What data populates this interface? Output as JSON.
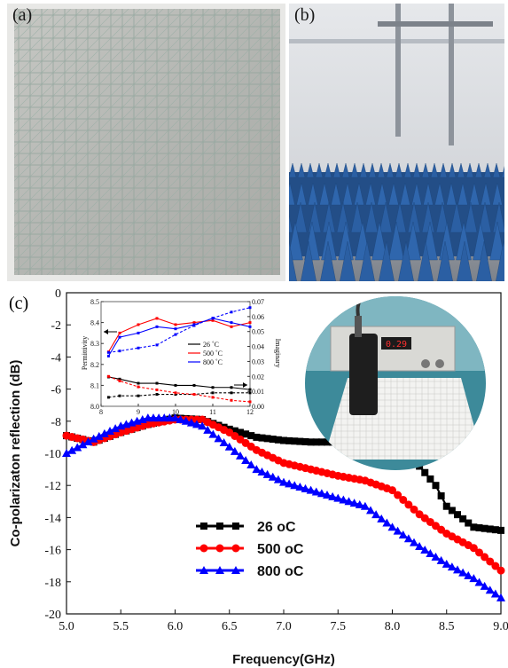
{
  "panels": {
    "a": {
      "label": "(a)"
    },
    "b": {
      "label": "(b)"
    },
    "c": {
      "label": "(c)"
    }
  },
  "meter": {
    "display": "0.29"
  },
  "colors": {
    "s26": "#000000",
    "s500": "#ff0000",
    "s800": "#0000ff",
    "absorber": "#2b5fa3"
  },
  "chart_data": [
    {
      "type": "line",
      "xlabel": "Frequency(GHz)",
      "ylabel": "Co-polarizaton reflection (dB)",
      "xlim": [
        5.0,
        9.0
      ],
      "ylim": [
        -20,
        0
      ],
      "xticks": [
        "5.0",
        "5.5",
        "6.0",
        "6.5",
        "7.0",
        "7.5",
        "8.0",
        "8.5",
        "9.0"
      ],
      "yticks": [
        "0",
        "-2",
        "-4",
        "-6",
        "-8",
        "-10",
        "-12",
        "-14",
        "-16",
        "-18",
        "-20"
      ],
      "legend_position": "lower-center",
      "series": [
        {
          "name": "26 oC",
          "marker": "square",
          "color": "#000000",
          "x": [
            5.0,
            5.25,
            5.5,
            5.75,
            6.0,
            6.25,
            6.5,
            6.75,
            7.0,
            7.25,
            7.5,
            7.75,
            7.9,
            8.0,
            8.25,
            8.4,
            8.5,
            8.75,
            9.0
          ],
          "y": [
            -8.9,
            -9.3,
            -8.7,
            -8.2,
            -7.8,
            -7.9,
            -8.5,
            -9.0,
            -9.2,
            -9.3,
            -9.3,
            -9.4,
            -9.6,
            -10.0,
            -10.8,
            -12.0,
            -13.3,
            -14.6,
            -14.8
          ]
        },
        {
          "name": "500 oC",
          "marker": "circle",
          "color": "#ff0000",
          "x": [
            5.0,
            5.25,
            5.5,
            5.75,
            6.0,
            6.25,
            6.5,
            6.75,
            7.0,
            7.25,
            7.5,
            7.75,
            8.0,
            8.25,
            8.5,
            8.75,
            9.0
          ],
          "y": [
            -8.9,
            -9.3,
            -8.7,
            -8.2,
            -7.9,
            -7.9,
            -8.7,
            -9.8,
            -10.6,
            -11.0,
            -11.4,
            -11.7,
            -12.3,
            -13.8,
            -15.0,
            -15.9,
            -17.3
          ]
        },
        {
          "name": "800 oC",
          "marker": "triangle",
          "color": "#0000ff",
          "x": [
            5.0,
            5.25,
            5.5,
            5.75,
            6.0,
            6.25,
            6.5,
            6.75,
            7.0,
            7.25,
            7.5,
            7.75,
            8.0,
            8.25,
            8.5,
            8.75,
            9.0
          ],
          "y": [
            -10.0,
            -9.1,
            -8.3,
            -7.8,
            -7.8,
            -8.3,
            -9.6,
            -11.0,
            -11.8,
            -12.3,
            -12.8,
            -13.3,
            -14.6,
            -15.8,
            -16.9,
            -17.8,
            -19.0
          ]
        }
      ]
    },
    {
      "type": "line",
      "xlabel": "",
      "ylabel": "Permittivity",
      "y2label": "Imaginary",
      "xlim": [
        8,
        12
      ],
      "ylim": [
        8.0,
        8.5
      ],
      "y2lim": [
        0.0,
        0.07
      ],
      "xticks": [
        "8",
        "9",
        "10",
        "11",
        "12"
      ],
      "yticks": [
        "8.0",
        "8.1",
        "8.2",
        "8.3",
        "8.4",
        "8.5"
      ],
      "y2ticks": [
        "0.00",
        "0.01",
        "0.02",
        "0.03",
        "0.04",
        "0.05",
        "0.06",
        "0.07"
      ],
      "legend_position": "right",
      "legend": [
        "26 ˚C",
        "500 ˚C",
        "800 ˚C"
      ],
      "series": [
        {
          "name": "26 ˚C",
          "axis": "left",
          "color": "#000000",
          "x": [
            8.2,
            8.5,
            9,
            9.5,
            10,
            10.5,
            11,
            11.5,
            12
          ],
          "y": [
            8.14,
            8.13,
            8.11,
            8.11,
            8.1,
            8.1,
            8.09,
            8.09,
            8.08
          ]
        },
        {
          "name": "500 ˚C",
          "axis": "left",
          "color": "#ff0000",
          "x": [
            8.2,
            8.5,
            9,
            9.5,
            10,
            10.5,
            11,
            11.5,
            12
          ],
          "y": [
            8.26,
            8.35,
            8.39,
            8.42,
            8.39,
            8.4,
            8.41,
            8.38,
            8.4
          ]
        },
        {
          "name": "800 ˚C",
          "axis": "left",
          "color": "#0000ff",
          "x": [
            8.2,
            8.5,
            9,
            9.5,
            10,
            10.5,
            11,
            11.5,
            12
          ],
          "y": [
            8.24,
            8.33,
            8.35,
            8.38,
            8.37,
            8.39,
            8.42,
            8.4,
            8.38
          ]
        },
        {
          "name": "26 ˚C imag",
          "axis": "right",
          "style": "dashed",
          "color": "#000000",
          "x": [
            8.2,
            8.5,
            9,
            9.5,
            10,
            10.5,
            11,
            11.5,
            12
          ],
          "y": [
            0.006,
            0.007,
            0.007,
            0.008,
            0.008,
            0.008,
            0.009,
            0.009,
            0.009
          ]
        },
        {
          "name": "500 ˚C imag",
          "axis": "right",
          "style": "dashed",
          "color": "#ff0000",
          "x": [
            8.2,
            8.5,
            9,
            9.5,
            10,
            10.5,
            11,
            11.5,
            12
          ],
          "y": [
            0.02,
            0.017,
            0.013,
            0.011,
            0.009,
            0.008,
            0.006,
            0.004,
            0.003
          ]
        },
        {
          "name": "800 ˚C imag",
          "axis": "right",
          "style": "dashed",
          "color": "#0000ff",
          "x": [
            8.2,
            8.5,
            9,
            9.5,
            10,
            10.5,
            11,
            11.5,
            12
          ],
          "y": [
            0.036,
            0.037,
            0.039,
            0.041,
            0.048,
            0.054,
            0.059,
            0.063,
            0.066
          ]
        }
      ]
    }
  ]
}
